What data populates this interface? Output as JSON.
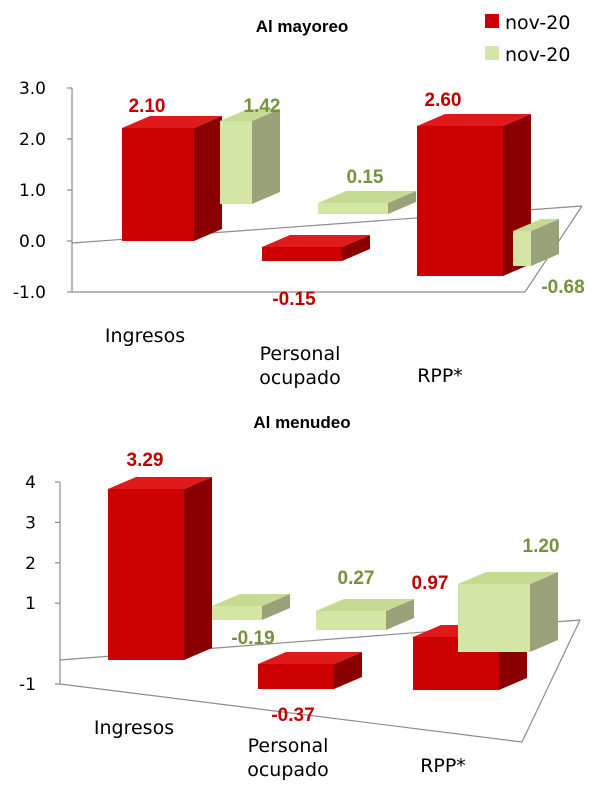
{
  "colors": {
    "series1": {
      "front": "#cc0000",
      "side": "#8a0000",
      "top": "#e01a1a"
    },
    "series2": {
      "front": "#d4e6a6",
      "side": "#9aa27a",
      "top": "#c6db92"
    },
    "label1": "#c00000",
    "label2": "#76923c"
  },
  "legend": [
    {
      "label": "nov-20"
    },
    {
      "label": "nov-20"
    }
  ],
  "chart_data": [
    {
      "type": "bar",
      "title": "Al mayoreo",
      "categories": [
        "Ingresos",
        "Personal ocupado",
        "RPP*"
      ],
      "category_labels": [
        [
          "Ingresos"
        ],
        [
          "Personal",
          "ocupado"
        ],
        [
          "RPP*"
        ]
      ],
      "series": [
        {
          "name": "nov-20",
          "values": [
            2.1,
            -0.15,
            2.6
          ],
          "labels": [
            "2.10",
            "-0.15",
            "2.60"
          ]
        },
        {
          "name": "nov-20",
          "values": [
            1.42,
            0.15,
            -0.68
          ],
          "labels": [
            "1.42",
            "0.15",
            "-0.68"
          ]
        }
      ],
      "ylim": [
        -1.0,
        3.0
      ],
      "yticks": [
        "3.0",
        "2.0",
        "1.0",
        "0.0",
        "-1.0"
      ],
      "ytick_values": [
        3,
        2,
        1,
        0,
        -1
      ],
      "grid": false
    },
    {
      "type": "bar",
      "title": "Al menudeo",
      "categories": [
        "Ingresos",
        "Personal ocupado",
        "RPP*"
      ],
      "category_labels": [
        [
          "Ingresos"
        ],
        [
          "Personal",
          "ocupado"
        ],
        [
          "RPP*"
        ]
      ],
      "series": [
        {
          "name": "nov-20",
          "values": [
            3.29,
            -0.37,
            0.97
          ],
          "labels": [
            "3.29",
            "-0.37",
            "0.97"
          ]
        },
        {
          "name": "nov-20",
          "values": [
            -0.19,
            0.27,
            1.2
          ],
          "labels": [
            "-0.19",
            "0.27",
            "1.20"
          ]
        }
      ],
      "ylim": [
        -1,
        4
      ],
      "yticks": [
        "4",
        "3",
        "2",
        "1",
        "-1"
      ],
      "ytick_values": [
        4,
        3,
        2,
        1,
        -1
      ],
      "grid": false
    }
  ]
}
